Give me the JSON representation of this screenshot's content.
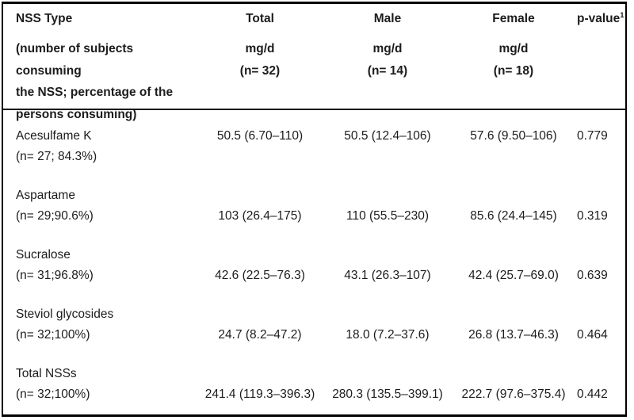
{
  "table": {
    "header": {
      "col1_title": "NSS Type",
      "col1_sub_lines": [
        "(number of subjects consuming",
        "the NSS; percentage of the",
        "persons consuming)"
      ],
      "cols": [
        {
          "title": "Total",
          "unit": "mg/d",
          "n": "(n= 32)"
        },
        {
          "title": "Male",
          "unit": "mg/d",
          "n": "(n= 14)"
        },
        {
          "title": "Female",
          "unit": "mg/d",
          "n": "(n= 18)"
        }
      ],
      "pvalue_label": "p-value",
      "pvalue_sup": "1"
    },
    "rows": [
      {
        "name": "Acesulfame K",
        "subtitle": "(n= 27; 84.3%)",
        "total": "50.5 (6.70–110)",
        "male": "50.5 (12.4–106)",
        "female": "57.6 (9.50–106)",
        "pvalue": "0.779"
      },
      {
        "name": "Aspartame",
        "subtitle": "(n= 29;90.6%)",
        "total": "103 (26.4–175)",
        "male": "110 (55.5–230)",
        "female": "85.6 (24.4–145)",
        "pvalue": "0.319"
      },
      {
        "name": "Sucralose",
        "subtitle": "(n= 31;96.8%)",
        "total": "42.6 (22.5–76.3)",
        "male": "43.1 (26.3–107)",
        "female": "42.4 (25.7–69.0)",
        "pvalue": "0.639"
      },
      {
        "name": "Steviol glycosides",
        "subtitle": "(n= 32;100%)",
        "total": "24.7 (8.2–47.2)",
        "male": "18.0 (7.2–37.6)",
        "female": "26.8 (13.7–46.3)",
        "pvalue": "0.464"
      },
      {
        "name": "Total NSSs",
        "subtitle": "(n= 32;100%)",
        "total": "241.4 (119.3–396.3)",
        "male": "280.3 (135.5–399.1)",
        "female": "222.7 (97.6–375.4)",
        "pvalue": "0.442"
      }
    ],
    "colors": {
      "border": "#000000",
      "text": "#1c1c1c",
      "background": "#ffffff"
    }
  }
}
